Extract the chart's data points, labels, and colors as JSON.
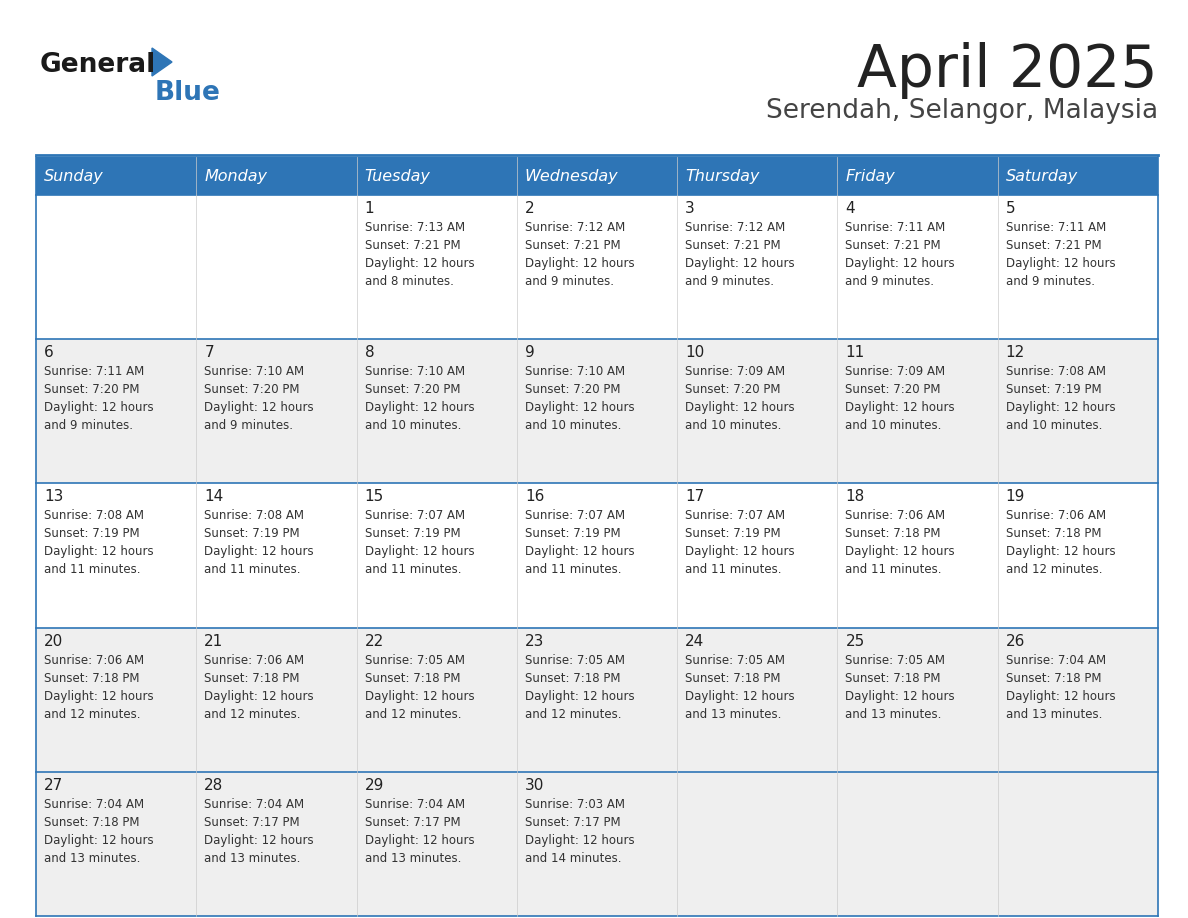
{
  "title": "April 2025",
  "subtitle": "Serendah, Selangor, Malaysia",
  "header_bg": "#2E75B6",
  "header_text": "#FFFFFF",
  "row_bg": [
    "#FFFFFF",
    "#EFEFEF",
    "#FFFFFF",
    "#EFEFEF",
    "#EFEFEF"
  ],
  "border_color": "#2E75B6",
  "days_of_week": [
    "Sunday",
    "Monday",
    "Tuesday",
    "Wednesday",
    "Thursday",
    "Friday",
    "Saturday"
  ],
  "title_color": "#222222",
  "subtitle_color": "#444444",
  "cell_text_color": "#333333",
  "day_num_color": "#222222",
  "logo_general_color": "#1a1a1a",
  "logo_blue_color": "#2E75B6",
  "calendar": [
    [
      {
        "day": "",
        "sunrise": "",
        "sunset": "",
        "daylight": ""
      },
      {
        "day": "",
        "sunrise": "",
        "sunset": "",
        "daylight": ""
      },
      {
        "day": "1",
        "sunrise": "Sunrise: 7:13 AM",
        "sunset": "Sunset: 7:21 PM",
        "daylight": "Daylight: 12 hours\nand 8 minutes."
      },
      {
        "day": "2",
        "sunrise": "Sunrise: 7:12 AM",
        "sunset": "Sunset: 7:21 PM",
        "daylight": "Daylight: 12 hours\nand 9 minutes."
      },
      {
        "day": "3",
        "sunrise": "Sunrise: 7:12 AM",
        "sunset": "Sunset: 7:21 PM",
        "daylight": "Daylight: 12 hours\nand 9 minutes."
      },
      {
        "day": "4",
        "sunrise": "Sunrise: 7:11 AM",
        "sunset": "Sunset: 7:21 PM",
        "daylight": "Daylight: 12 hours\nand 9 minutes."
      },
      {
        "day": "5",
        "sunrise": "Sunrise: 7:11 AM",
        "sunset": "Sunset: 7:21 PM",
        "daylight": "Daylight: 12 hours\nand 9 minutes."
      }
    ],
    [
      {
        "day": "6",
        "sunrise": "Sunrise: 7:11 AM",
        "sunset": "Sunset: 7:20 PM",
        "daylight": "Daylight: 12 hours\nand 9 minutes."
      },
      {
        "day": "7",
        "sunrise": "Sunrise: 7:10 AM",
        "sunset": "Sunset: 7:20 PM",
        "daylight": "Daylight: 12 hours\nand 9 minutes."
      },
      {
        "day": "8",
        "sunrise": "Sunrise: 7:10 AM",
        "sunset": "Sunset: 7:20 PM",
        "daylight": "Daylight: 12 hours\nand 10 minutes."
      },
      {
        "day": "9",
        "sunrise": "Sunrise: 7:10 AM",
        "sunset": "Sunset: 7:20 PM",
        "daylight": "Daylight: 12 hours\nand 10 minutes."
      },
      {
        "day": "10",
        "sunrise": "Sunrise: 7:09 AM",
        "sunset": "Sunset: 7:20 PM",
        "daylight": "Daylight: 12 hours\nand 10 minutes."
      },
      {
        "day": "11",
        "sunrise": "Sunrise: 7:09 AM",
        "sunset": "Sunset: 7:20 PM",
        "daylight": "Daylight: 12 hours\nand 10 minutes."
      },
      {
        "day": "12",
        "sunrise": "Sunrise: 7:08 AM",
        "sunset": "Sunset: 7:19 PM",
        "daylight": "Daylight: 12 hours\nand 10 minutes."
      }
    ],
    [
      {
        "day": "13",
        "sunrise": "Sunrise: 7:08 AM",
        "sunset": "Sunset: 7:19 PM",
        "daylight": "Daylight: 12 hours\nand 11 minutes."
      },
      {
        "day": "14",
        "sunrise": "Sunrise: 7:08 AM",
        "sunset": "Sunset: 7:19 PM",
        "daylight": "Daylight: 12 hours\nand 11 minutes."
      },
      {
        "day": "15",
        "sunrise": "Sunrise: 7:07 AM",
        "sunset": "Sunset: 7:19 PM",
        "daylight": "Daylight: 12 hours\nand 11 minutes."
      },
      {
        "day": "16",
        "sunrise": "Sunrise: 7:07 AM",
        "sunset": "Sunset: 7:19 PM",
        "daylight": "Daylight: 12 hours\nand 11 minutes."
      },
      {
        "day": "17",
        "sunrise": "Sunrise: 7:07 AM",
        "sunset": "Sunset: 7:19 PM",
        "daylight": "Daylight: 12 hours\nand 11 minutes."
      },
      {
        "day": "18",
        "sunrise": "Sunrise: 7:06 AM",
        "sunset": "Sunset: 7:18 PM",
        "daylight": "Daylight: 12 hours\nand 11 minutes."
      },
      {
        "day": "19",
        "sunrise": "Sunrise: 7:06 AM",
        "sunset": "Sunset: 7:18 PM",
        "daylight": "Daylight: 12 hours\nand 12 minutes."
      }
    ],
    [
      {
        "day": "20",
        "sunrise": "Sunrise: 7:06 AM",
        "sunset": "Sunset: 7:18 PM",
        "daylight": "Daylight: 12 hours\nand 12 minutes."
      },
      {
        "day": "21",
        "sunrise": "Sunrise: 7:06 AM",
        "sunset": "Sunset: 7:18 PM",
        "daylight": "Daylight: 12 hours\nand 12 minutes."
      },
      {
        "day": "22",
        "sunrise": "Sunrise: 7:05 AM",
        "sunset": "Sunset: 7:18 PM",
        "daylight": "Daylight: 12 hours\nand 12 minutes."
      },
      {
        "day": "23",
        "sunrise": "Sunrise: 7:05 AM",
        "sunset": "Sunset: 7:18 PM",
        "daylight": "Daylight: 12 hours\nand 12 minutes."
      },
      {
        "day": "24",
        "sunrise": "Sunrise: 7:05 AM",
        "sunset": "Sunset: 7:18 PM",
        "daylight": "Daylight: 12 hours\nand 13 minutes."
      },
      {
        "day": "25",
        "sunrise": "Sunrise: 7:05 AM",
        "sunset": "Sunset: 7:18 PM",
        "daylight": "Daylight: 12 hours\nand 13 minutes."
      },
      {
        "day": "26",
        "sunrise": "Sunrise: 7:04 AM",
        "sunset": "Sunset: 7:18 PM",
        "daylight": "Daylight: 12 hours\nand 13 minutes."
      }
    ],
    [
      {
        "day": "27",
        "sunrise": "Sunrise: 7:04 AM",
        "sunset": "Sunset: 7:18 PM",
        "daylight": "Daylight: 12 hours\nand 13 minutes."
      },
      {
        "day": "28",
        "sunrise": "Sunrise: 7:04 AM",
        "sunset": "Sunset: 7:17 PM",
        "daylight": "Daylight: 12 hours\nand 13 minutes."
      },
      {
        "day": "29",
        "sunrise": "Sunrise: 7:04 AM",
        "sunset": "Sunset: 7:17 PM",
        "daylight": "Daylight: 12 hours\nand 13 minutes."
      },
      {
        "day": "30",
        "sunrise": "Sunrise: 7:03 AM",
        "sunset": "Sunset: 7:17 PM",
        "daylight": "Daylight: 12 hours\nand 14 minutes."
      },
      {
        "day": "",
        "sunrise": "",
        "sunset": "",
        "daylight": ""
      },
      {
        "day": "",
        "sunrise": "",
        "sunset": "",
        "daylight": ""
      },
      {
        "day": "",
        "sunrise": "",
        "sunset": "",
        "daylight": ""
      }
    ]
  ]
}
